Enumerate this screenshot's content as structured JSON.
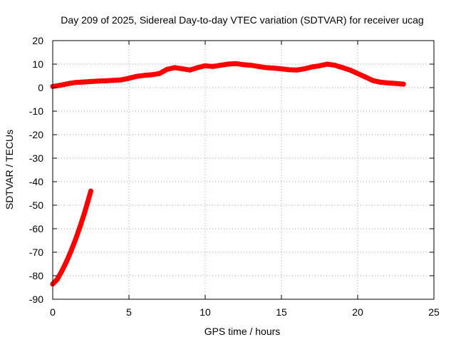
{
  "chart_data": {
    "type": "line",
    "title": "Day 209 of 2025, Sidereal Day-to-day VTEC variation (SDTVAR) for receiver ucag",
    "xlabel": "GPS time / hours",
    "ylabel": "SDTVAR / TECUs",
    "xlim": [
      0,
      25
    ],
    "ylim": [
      -90,
      20
    ],
    "xticks": [
      0,
      5,
      10,
      15,
      20,
      25
    ],
    "yticks": [
      -90,
      -80,
      -70,
      -60,
      -50,
      -40,
      -30,
      -20,
      -10,
      0,
      10,
      20
    ],
    "grid": true,
    "line_color": "#ff0000",
    "grid_color": "#a0a0a0",
    "series": [
      {
        "name": "main-trace",
        "points": [
          [
            0.0,
            0.5
          ],
          [
            0.5,
            1.0
          ],
          [
            1.0,
            1.7
          ],
          [
            1.5,
            2.2
          ],
          [
            2.0,
            2.4
          ],
          [
            2.5,
            2.6
          ],
          [
            3.0,
            2.8
          ],
          [
            3.5,
            2.9
          ],
          [
            4.0,
            3.1
          ],
          [
            4.5,
            3.3
          ],
          [
            5.0,
            4.0
          ],
          [
            5.5,
            4.8
          ],
          [
            6.0,
            5.2
          ],
          [
            6.5,
            5.5
          ],
          [
            7.0,
            6.0
          ],
          [
            7.5,
            7.8
          ],
          [
            8.0,
            8.5
          ],
          [
            8.5,
            8.0
          ],
          [
            9.0,
            7.5
          ],
          [
            9.5,
            8.5
          ],
          [
            10.0,
            9.3
          ],
          [
            10.5,
            9.0
          ],
          [
            11.0,
            9.5
          ],
          [
            11.5,
            10.0
          ],
          [
            12.0,
            10.2
          ],
          [
            12.5,
            9.8
          ],
          [
            13.0,
            9.5
          ],
          [
            13.5,
            9.0
          ],
          [
            14.0,
            8.5
          ],
          [
            14.5,
            8.3
          ],
          [
            15.0,
            8.0
          ],
          [
            15.5,
            7.6
          ],
          [
            16.0,
            7.5
          ],
          [
            16.5,
            8.0
          ],
          [
            17.0,
            8.8
          ],
          [
            17.5,
            9.3
          ],
          [
            18.0,
            10.0
          ],
          [
            18.5,
            9.5
          ],
          [
            19.0,
            8.5
          ],
          [
            19.5,
            7.5
          ],
          [
            20.0,
            6.0
          ],
          [
            20.5,
            4.5
          ],
          [
            21.0,
            3.0
          ],
          [
            21.5,
            2.3
          ],
          [
            22.0,
            2.0
          ],
          [
            22.5,
            1.8
          ],
          [
            23.0,
            1.5
          ]
        ]
      },
      {
        "name": "early-trace",
        "points": [
          [
            0.0,
            -83.5
          ],
          [
            0.3,
            -81.5
          ],
          [
            0.6,
            -78.0
          ],
          [
            0.9,
            -74.0
          ],
          [
            1.2,
            -69.5
          ],
          [
            1.5,
            -64.5
          ],
          [
            1.8,
            -59.0
          ],
          [
            2.1,
            -53.0
          ],
          [
            2.3,
            -48.5
          ],
          [
            2.5,
            -44.0
          ]
        ]
      }
    ]
  }
}
